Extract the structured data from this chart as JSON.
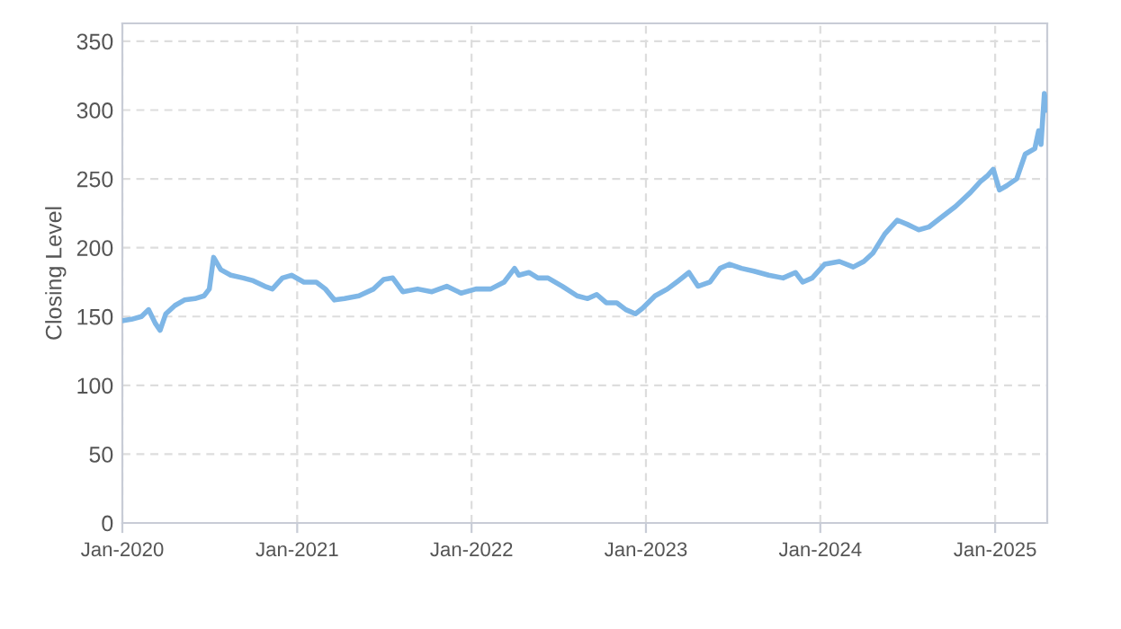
{
  "chart_data": {
    "type": "line",
    "ylabel": "Closing Level",
    "grid": true,
    "marker": "none",
    "line_style": "solid",
    "xlim": [
      "2020-01-01",
      "2025-04-20"
    ],
    "ylim": [
      0,
      363
    ],
    "xticks": [
      {
        "value": "2020-01-01",
        "label": "Jan-2020"
      },
      {
        "value": "2021-01-01",
        "label": "Jan-2021"
      },
      {
        "value": "2022-01-01",
        "label": "Jan-2022"
      },
      {
        "value": "2023-01-01",
        "label": "Jan-2023"
      },
      {
        "value": "2024-01-01",
        "label": "Jan-2024"
      },
      {
        "value": "2025-01-01",
        "label": "Jan-2025"
      }
    ],
    "yticks": [
      0,
      50,
      100,
      150,
      200,
      250,
      300,
      350
    ],
    "series": [
      {
        "color": "#7eb6e6",
        "x": [
          "2020-01-01",
          "2020-01-20",
          "2020-02-10",
          "2020-02-25",
          "2020-03-10",
          "2020-03-20",
          "2020-04-01",
          "2020-04-20",
          "2020-05-10",
          "2020-06-01",
          "2020-06-20",
          "2020-07-01",
          "2020-07-10",
          "2020-07-25",
          "2020-08-15",
          "2020-09-10",
          "2020-10-01",
          "2020-10-25",
          "2020-11-10",
          "2020-12-01",
          "2020-12-20",
          "2021-01-15",
          "2021-02-10",
          "2021-03-01",
          "2021-03-20",
          "2021-04-10",
          "2021-05-10",
          "2021-06-10",
          "2021-07-01",
          "2021-07-20",
          "2021-08-10",
          "2021-09-10",
          "2021-10-10",
          "2021-11-10",
          "2021-12-10",
          "2022-01-10",
          "2022-02-10",
          "2022-03-10",
          "2022-04-01",
          "2022-04-10",
          "2022-05-01",
          "2022-05-20",
          "2022-06-10",
          "2022-07-10",
          "2022-08-10",
          "2022-09-01",
          "2022-09-20",
          "2022-10-10",
          "2022-11-01",
          "2022-11-20",
          "2022-12-10",
          "2022-12-25",
          "2023-01-20",
          "2023-02-15",
          "2023-03-10",
          "2023-04-01",
          "2023-04-20",
          "2023-05-15",
          "2023-06-05",
          "2023-06-25",
          "2023-07-20",
          "2023-08-15",
          "2023-09-15",
          "2023-10-15",
          "2023-11-10",
          "2023-11-25",
          "2023-12-15",
          "2024-01-10",
          "2024-02-10",
          "2024-03-10",
          "2024-04-01",
          "2024-04-20",
          "2024-05-15",
          "2024-06-10",
          "2024-07-01",
          "2024-07-25",
          "2024-08-15",
          "2024-09-10",
          "2024-10-10",
          "2024-11-10",
          "2024-12-01",
          "2024-12-15",
          "2024-12-28",
          "2025-01-10",
          "2025-01-25",
          "2025-02-15",
          "2025-03-05",
          "2025-03-25",
          "2025-04-02",
          "2025-04-07",
          "2025-04-14",
          "2025-04-20"
        ],
        "values": [
          147,
          148,
          150,
          155,
          145,
          140,
          152,
          158,
          162,
          163,
          165,
          170,
          193,
          184,
          180,
          178,
          176,
          172,
          170,
          178,
          180,
          175,
          175,
          170,
          162,
          163,
          165,
          170,
          177,
          178,
          168,
          170,
          168,
          172,
          167,
          170,
          170,
          175,
          185,
          180,
          182,
          178,
          178,
          172,
          165,
          163,
          166,
          160,
          160,
          155,
          152,
          156,
          165,
          170,
          176,
          182,
          172,
          175,
          185,
          188,
          185,
          183,
          180,
          178,
          182,
          175,
          178,
          188,
          190,
          186,
          190,
          196,
          210,
          220,
          217,
          213,
          215,
          222,
          230,
          240,
          248,
          252,
          257,
          242,
          245,
          250,
          268,
          272,
          285,
          275,
          312,
          300
        ]
      }
    ]
  }
}
